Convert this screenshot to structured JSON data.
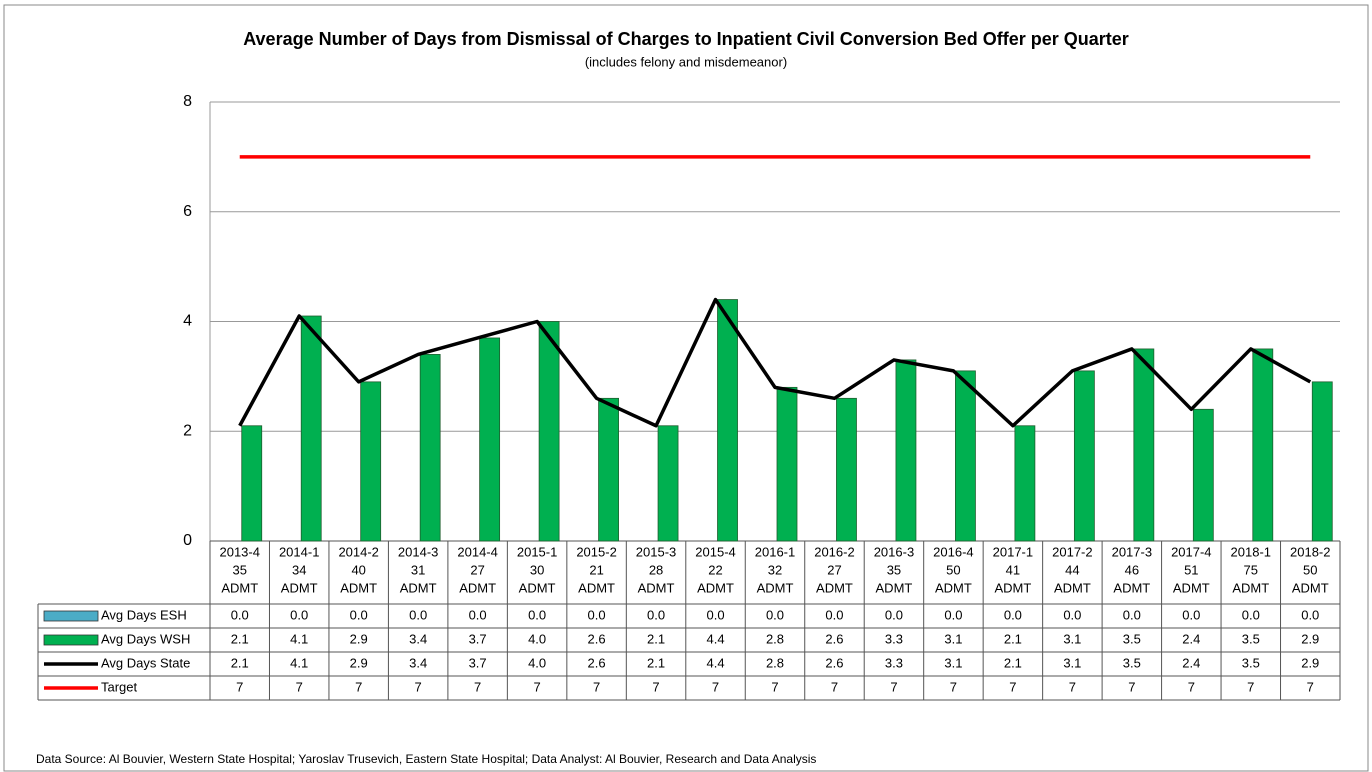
{
  "chart_data": {
    "type": "bar",
    "title": "Average Number of Days from Dismissal of Charges to Inpatient Civil Conversion Bed Offer per Quarter",
    "subtitle": "(includes felony and misdemeanor)",
    "footnote": "Data Source: Al Bouvier, Western State Hospital; Yaroslav Trusevich, Eastern State Hospital; Data Analyst: Al Bouvier, Research and Data Analysis",
    "categories": [
      [
        "2013-4",
        "35",
        "ADMT"
      ],
      [
        "2014-1",
        "34",
        "ADMT"
      ],
      [
        "2014-2",
        "40",
        "ADMT"
      ],
      [
        "2014-3",
        "31",
        "ADMT"
      ],
      [
        "2014-4",
        "27",
        "ADMT"
      ],
      [
        "2015-1",
        "30",
        "ADMT"
      ],
      [
        "2015-2",
        "21",
        "ADMT"
      ],
      [
        "2015-3",
        "28",
        "ADMT"
      ],
      [
        "2015-4",
        "22",
        "ADMT"
      ],
      [
        "2016-1",
        "32",
        "ADMT"
      ],
      [
        "2016-2",
        "27",
        "ADMT"
      ],
      [
        "2016-3",
        "35",
        "ADMT"
      ],
      [
        "2016-4",
        "50",
        "ADMT"
      ],
      [
        "2017-1",
        "41",
        "ADMT"
      ],
      [
        "2017-2",
        "44",
        "ADMT"
      ],
      [
        "2017-3",
        "46",
        "ADMT"
      ],
      [
        "2017-4",
        "51",
        "ADMT"
      ],
      [
        "2018-1",
        "75",
        "ADMT"
      ],
      [
        "2018-2",
        "50",
        "ADMT"
      ]
    ],
    "series": [
      {
        "name": "Avg Days ESH",
        "kind": "bar",
        "color": "#4bacc6",
        "values": [
          0,
          0,
          0,
          0,
          0,
          0,
          0,
          0,
          0,
          0,
          0,
          0,
          0,
          0,
          0,
          0,
          0,
          0,
          0
        ],
        "value_labels": [
          "0.0",
          "0.0",
          "0.0",
          "0.0",
          "0.0",
          "0.0",
          "0.0",
          "0.0",
          "0.0",
          "0.0",
          "0.0",
          "0.0",
          "0.0",
          "0.0",
          "0.0",
          "0.0",
          "0.0",
          "0.0",
          "0.0"
        ]
      },
      {
        "name": "Avg Days WSH",
        "kind": "bar",
        "color": "#00b050",
        "values": [
          2.1,
          4.1,
          2.9,
          3.4,
          3.7,
          4.0,
          2.6,
          2.1,
          4.4,
          2.8,
          2.6,
          3.3,
          3.1,
          2.1,
          3.1,
          3.5,
          2.4,
          3.5,
          2.9
        ],
        "value_labels": [
          "2.1",
          "4.1",
          "2.9",
          "3.4",
          "3.7",
          "4.0",
          "2.6",
          "2.1",
          "4.4",
          "2.8",
          "2.6",
          "3.3",
          "3.1",
          "2.1",
          "3.1",
          "3.5",
          "2.4",
          "3.5",
          "2.9"
        ]
      },
      {
        "name": "Avg Days State",
        "kind": "line",
        "color": "#000000",
        "values": [
          2.1,
          4.1,
          2.9,
          3.4,
          3.7,
          4.0,
          2.6,
          2.1,
          4.4,
          2.8,
          2.6,
          3.3,
          3.1,
          2.1,
          3.1,
          3.5,
          2.4,
          3.5,
          2.9
        ],
        "value_labels": [
          "2.1",
          "4.1",
          "2.9",
          "3.4",
          "3.7",
          "4.0",
          "2.6",
          "2.1",
          "4.4",
          "2.8",
          "2.6",
          "3.3",
          "3.1",
          "2.1",
          "3.1",
          "3.5",
          "2.4",
          "3.5",
          "2.9"
        ]
      },
      {
        "name": "Target",
        "kind": "line",
        "color": "#ff0000",
        "values": [
          7,
          7,
          7,
          7,
          7,
          7,
          7,
          7,
          7,
          7,
          7,
          7,
          7,
          7,
          7,
          7,
          7,
          7,
          7
        ]
      }
    ],
    "ylim": [
      0,
      8
    ],
    "yticks": [
      0,
      2,
      4,
      6,
      8
    ],
    "grid": true
  }
}
